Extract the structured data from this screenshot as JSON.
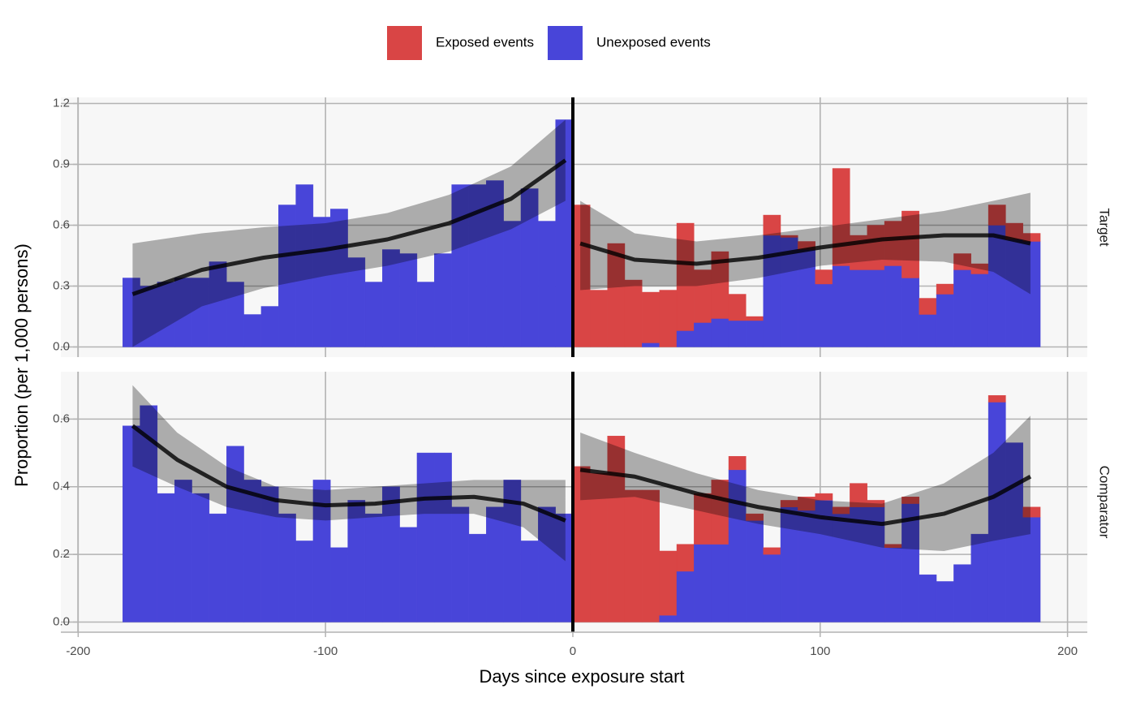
{
  "chart_data": [
    {
      "type": "histogram",
      "facet": "Target",
      "ylabel": "Proportion (per 1,000 persons)",
      "legend": "top",
      "grid": true,
      "vline": 0,
      "bins": [
        -182,
        -175,
        -168,
        -161,
        -154,
        -147,
        -140,
        -133,
        -126,
        -119,
        -112,
        -105,
        -98,
        -91,
        -84,
        -77,
        -70,
        -63,
        -56,
        -49,
        -42,
        -35,
        -28,
        -21,
        -14,
        -7,
        0,
        7,
        14,
        21,
        28,
        35,
        42,
        49,
        56,
        63,
        70,
        77,
        84,
        91,
        98,
        105,
        112,
        119,
        126,
        133,
        140,
        147,
        154,
        161,
        168,
        175,
        182,
        189
      ],
      "series": [
        {
          "name": "Exposed events",
          "color": "#d94545",
          "values": [
            0,
            0,
            0,
            0,
            0,
            0,
            0,
            0,
            0,
            0,
            0,
            0,
            0,
            0,
            0,
            0,
            0,
            0,
            0,
            0,
            0,
            0,
            0,
            0,
            0,
            0,
            0.7,
            0.28,
            0.51,
            0.33,
            0.25,
            0.28,
            0.53,
            0.26,
            0.33,
            0.13,
            0.02,
            0.1,
            0.01,
            0.04,
            0.07,
            0.48,
            0.17,
            0.22,
            0.22,
            0.33,
            0.08,
            0.05,
            0.08,
            0.05,
            0.1,
            0.08,
            0.04
          ]
        },
        {
          "name": "Unexposed events",
          "color": "#4845d9",
          "values": [
            0.34,
            0.3,
            0.32,
            0.34,
            0.34,
            0.42,
            0.32,
            0.16,
            0.2,
            0.7,
            0.8,
            0.64,
            0.68,
            0.44,
            0.32,
            0.48,
            0.46,
            0.32,
            0.46,
            0.8,
            0.8,
            0.82,
            0.62,
            0.78,
            0.62,
            1.12,
            0,
            0,
            0,
            0,
            0.02,
            0,
            0.08,
            0.12,
            0.14,
            0.13,
            0.13,
            0.55,
            0.54,
            0.48,
            0.31,
            0.4,
            0.38,
            0.38,
            0.4,
            0.34,
            0.16,
            0.26,
            0.38,
            0.36,
            0.6,
            0.53,
            0.52
          ]
        }
      ],
      "smooth": {
        "x": [
          -178,
          -150,
          -125,
          -100,
          -75,
          -50,
          -25,
          -3,
          null,
          3,
          25,
          50,
          75,
          100,
          125,
          150,
          170,
          185
        ],
        "y": [
          0.26,
          0.38,
          0.44,
          0.48,
          0.53,
          0.61,
          0.73,
          0.92,
          null,
          0.51,
          0.43,
          0.41,
          0.44,
          0.49,
          0.53,
          0.55,
          0.55,
          0.51
        ],
        "lower": [
          0.0,
          0.2,
          0.29,
          0.35,
          0.4,
          0.47,
          0.58,
          0.72,
          null,
          0.28,
          0.3,
          0.3,
          0.34,
          0.4,
          0.43,
          0.42,
          0.37,
          0.26
        ],
        "upper": [
          0.51,
          0.56,
          0.59,
          0.61,
          0.66,
          0.75,
          0.89,
          1.12,
          null,
          0.72,
          0.56,
          0.52,
          0.55,
          0.59,
          0.63,
          0.67,
          0.72,
          0.76
        ]
      },
      "xlim": [
        -207,
        208
      ],
      "ylim": [
        -0.05,
        1.23
      ],
      "yticks": [
        {
          "value": 0,
          "label": "0.0"
        },
        {
          "value": 0.3,
          "label": "0.3"
        },
        {
          "value": 0.6,
          "label": "0.6"
        },
        {
          "value": 0.9,
          "label": "0.9"
        },
        {
          "value": 1.2,
          "label": "1.2"
        }
      ]
    },
    {
      "type": "histogram",
      "facet": "Comparator",
      "xlabel": "Days since exposure start",
      "grid": true,
      "vline": 0,
      "bins": [
        -182,
        -175,
        -168,
        -161,
        -154,
        -147,
        -140,
        -133,
        -126,
        -119,
        -112,
        -105,
        -98,
        -91,
        -84,
        -77,
        -70,
        -63,
        -56,
        -49,
        -42,
        -35,
        -28,
        -21,
        -14,
        -7,
        0,
        7,
        14,
        21,
        28,
        35,
        42,
        49,
        56,
        63,
        70,
        77,
        84,
        91,
        98,
        105,
        112,
        119,
        126,
        133,
        140,
        147,
        154,
        161,
        168,
        175,
        182,
        189
      ],
      "series": [
        {
          "color": "#d94545",
          "values": [
            0,
            0,
            0,
            0,
            0,
            0,
            0,
            0,
            0,
            0,
            0,
            0,
            0,
            0,
            0,
            0,
            0,
            0,
            0,
            0,
            0,
            0,
            0,
            0,
            0,
            0,
            0.46,
            0.44,
            0.55,
            0.39,
            0.39,
            0.19,
            0.08,
            0.15,
            0.19,
            0.04,
            0.02,
            0.02,
            0.02,
            0.04,
            0.02,
            0.02,
            0.07,
            0.02,
            0.01,
            0.02,
            0,
            0,
            0,
            0,
            0.02,
            0,
            0.03
          ]
        },
        {
          "color": "#4845d9",
          "values": [
            0.58,
            0.64,
            0.38,
            0.42,
            0.38,
            0.32,
            0.52,
            0.42,
            0.4,
            0.32,
            0.24,
            0.42,
            0.22,
            0.36,
            0.32,
            0.4,
            0.28,
            0.5,
            0.5,
            0.34,
            0.26,
            0.34,
            0.42,
            0.24,
            0.34,
            0.32,
            0,
            0,
            0,
            0,
            0,
            0.02,
            0.15,
            0.23,
            0.23,
            0.45,
            0.3,
            0.2,
            0.34,
            0.33,
            0.36,
            0.32,
            0.34,
            0.34,
            0.22,
            0.35,
            0.14,
            0.12,
            0.17,
            0.26,
            0.65,
            0.53,
            0.31
          ]
        }
      ],
      "smooth": {
        "x": [
          -178,
          -160,
          -140,
          -120,
          -100,
          -80,
          -60,
          -40,
          -20,
          -3,
          null,
          3,
          25,
          50,
          75,
          100,
          125,
          150,
          170,
          185
        ],
        "y": [
          0.58,
          0.48,
          0.4,
          0.36,
          0.345,
          0.35,
          0.365,
          0.37,
          0.35,
          0.3,
          null,
          0.45,
          0.43,
          0.38,
          0.34,
          0.31,
          0.29,
          0.32,
          0.37,
          0.43
        ],
        "lower": [
          0.46,
          0.4,
          0.34,
          0.31,
          0.3,
          0.31,
          0.32,
          0.32,
          0.28,
          0.18,
          null,
          0.36,
          0.37,
          0.33,
          0.29,
          0.26,
          0.22,
          0.21,
          0.24,
          0.26
        ],
        "upper": [
          0.7,
          0.56,
          0.46,
          0.4,
          0.39,
          0.4,
          0.41,
          0.42,
          0.42,
          0.42,
          null,
          0.56,
          0.5,
          0.44,
          0.39,
          0.36,
          0.35,
          0.41,
          0.5,
          0.61
        ]
      },
      "xlim": [
        -207,
        208
      ],
      "ylim": [
        -0.03,
        0.74
      ],
      "xticks": [
        -200,
        -100,
        0,
        100,
        200
      ],
      "yticks": [
        {
          "value": 0,
          "label": "0.0"
        },
        {
          "value": 0.2,
          "label": "0.2"
        },
        {
          "value": 0.4,
          "label": "0.4"
        },
        {
          "value": 0.6,
          "label": "0.6"
        }
      ]
    }
  ]
}
